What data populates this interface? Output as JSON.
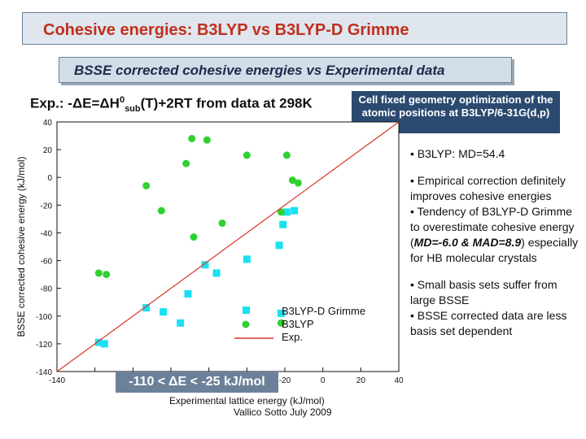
{
  "header": {
    "title": "Cohesive energies: B3LYP vs B3LYP-D Grimme",
    "subtitle": "BSSE corrected cohesive energies vs Experimental data"
  },
  "exp_label": {
    "prefix": "Exp.: -ΔE=ΔH",
    "sup": "0",
    "sub": "sub",
    "suffix": "(T)+2RT from data at 298K"
  },
  "note_box": "Cell fixed geometry optimization of the atomic positions at B3LYP/6-31G(d,p)",
  "bullets": [
    "• B3LYP: MD=54.4",
    "• Empirical correction definitely improves cohesive energies",
    "• Small basis sets suffer from large BSSE"
  ],
  "bullet_extra": {
    "tendency_text": "• Tendency of B3LYP-D Grimme to overestimate cohesive energy (",
    "md_text": "MD=-6.0 & MAD=8.9",
    "tendency_tail": ") especially for HB molecular crystals",
    "bsse_text": "• BSSE corrected data are less basis set dependent"
  },
  "range_box": "-110 < ΔE < -25 kJ/mol",
  "footer": "Vallico Sotto  July 2009",
  "colors": {
    "title": "#c0301c",
    "b3lyp_d": "#19e0f2",
    "b3lyp": "#2fd12f",
    "exp_line": "#d9352a"
  },
  "chart_data": {
    "type": "scatter",
    "xlabel": "Experimental lattice energy (kJ/mol)",
    "ylabel": "BSSE corrected cohesive energy (kJ/mol)",
    "xlim": [
      -140,
      40
    ],
    "ylim": [
      -140,
      40
    ],
    "xticks": [
      -140,
      -120,
      -100,
      -80,
      -60,
      -40,
      -20,
      0,
      20,
      40
    ],
    "yticks": [
      40,
      20,
      0,
      -20,
      -40,
      -60,
      -80,
      -100,
      -120,
      -140
    ],
    "x_tick_labels_visible": [
      "-140",
      "-20",
      "0",
      "20",
      "40"
    ],
    "y_tick_labels": [
      "40",
      "20",
      "0",
      "-20",
      "-40",
      "-60",
      "-80",
      "-100",
      "-120",
      "-140"
    ],
    "legend": {
      "position": "lower-right",
      "entries": [
        "B3LYP-D Grimme",
        "B3LYP",
        "Exp."
      ]
    },
    "series": [
      {
        "name": "B3LYP-D Grimme",
        "marker": "square",
        "points": [
          [
            -118,
            -119
          ],
          [
            -115,
            -120
          ],
          [
            -93,
            -94
          ],
          [
            -84,
            -97
          ],
          [
            -75,
            -105
          ],
          [
            -71,
            -84
          ],
          [
            -62,
            -63
          ],
          [
            -56,
            -69
          ],
          [
            -40,
            -59
          ],
          [
            -23,
            -49
          ],
          [
            -22,
            -98
          ],
          [
            -21,
            -34
          ],
          [
            -19,
            -25
          ],
          [
            -15,
            -24
          ]
        ]
      },
      {
        "name": "B3LYP",
        "marker": "circle",
        "points": [
          [
            -118,
            -69
          ],
          [
            -114,
            -70
          ],
          [
            -93,
            -6
          ],
          [
            -85,
            -24
          ],
          [
            -72,
            10
          ],
          [
            -69,
            28
          ],
          [
            -68,
            -43
          ],
          [
            -61,
            27
          ],
          [
            -53,
            -33
          ],
          [
            -40,
            16
          ],
          [
            -22,
            -25
          ],
          [
            -22,
            -105
          ],
          [
            -19,
            16
          ],
          [
            -16,
            -2
          ],
          [
            -13,
            -4
          ]
        ]
      },
      {
        "name": "Exp.",
        "type": "line",
        "points": [
          [
            -140,
            -140
          ],
          [
            40,
            40
          ]
        ]
      }
    ]
  }
}
